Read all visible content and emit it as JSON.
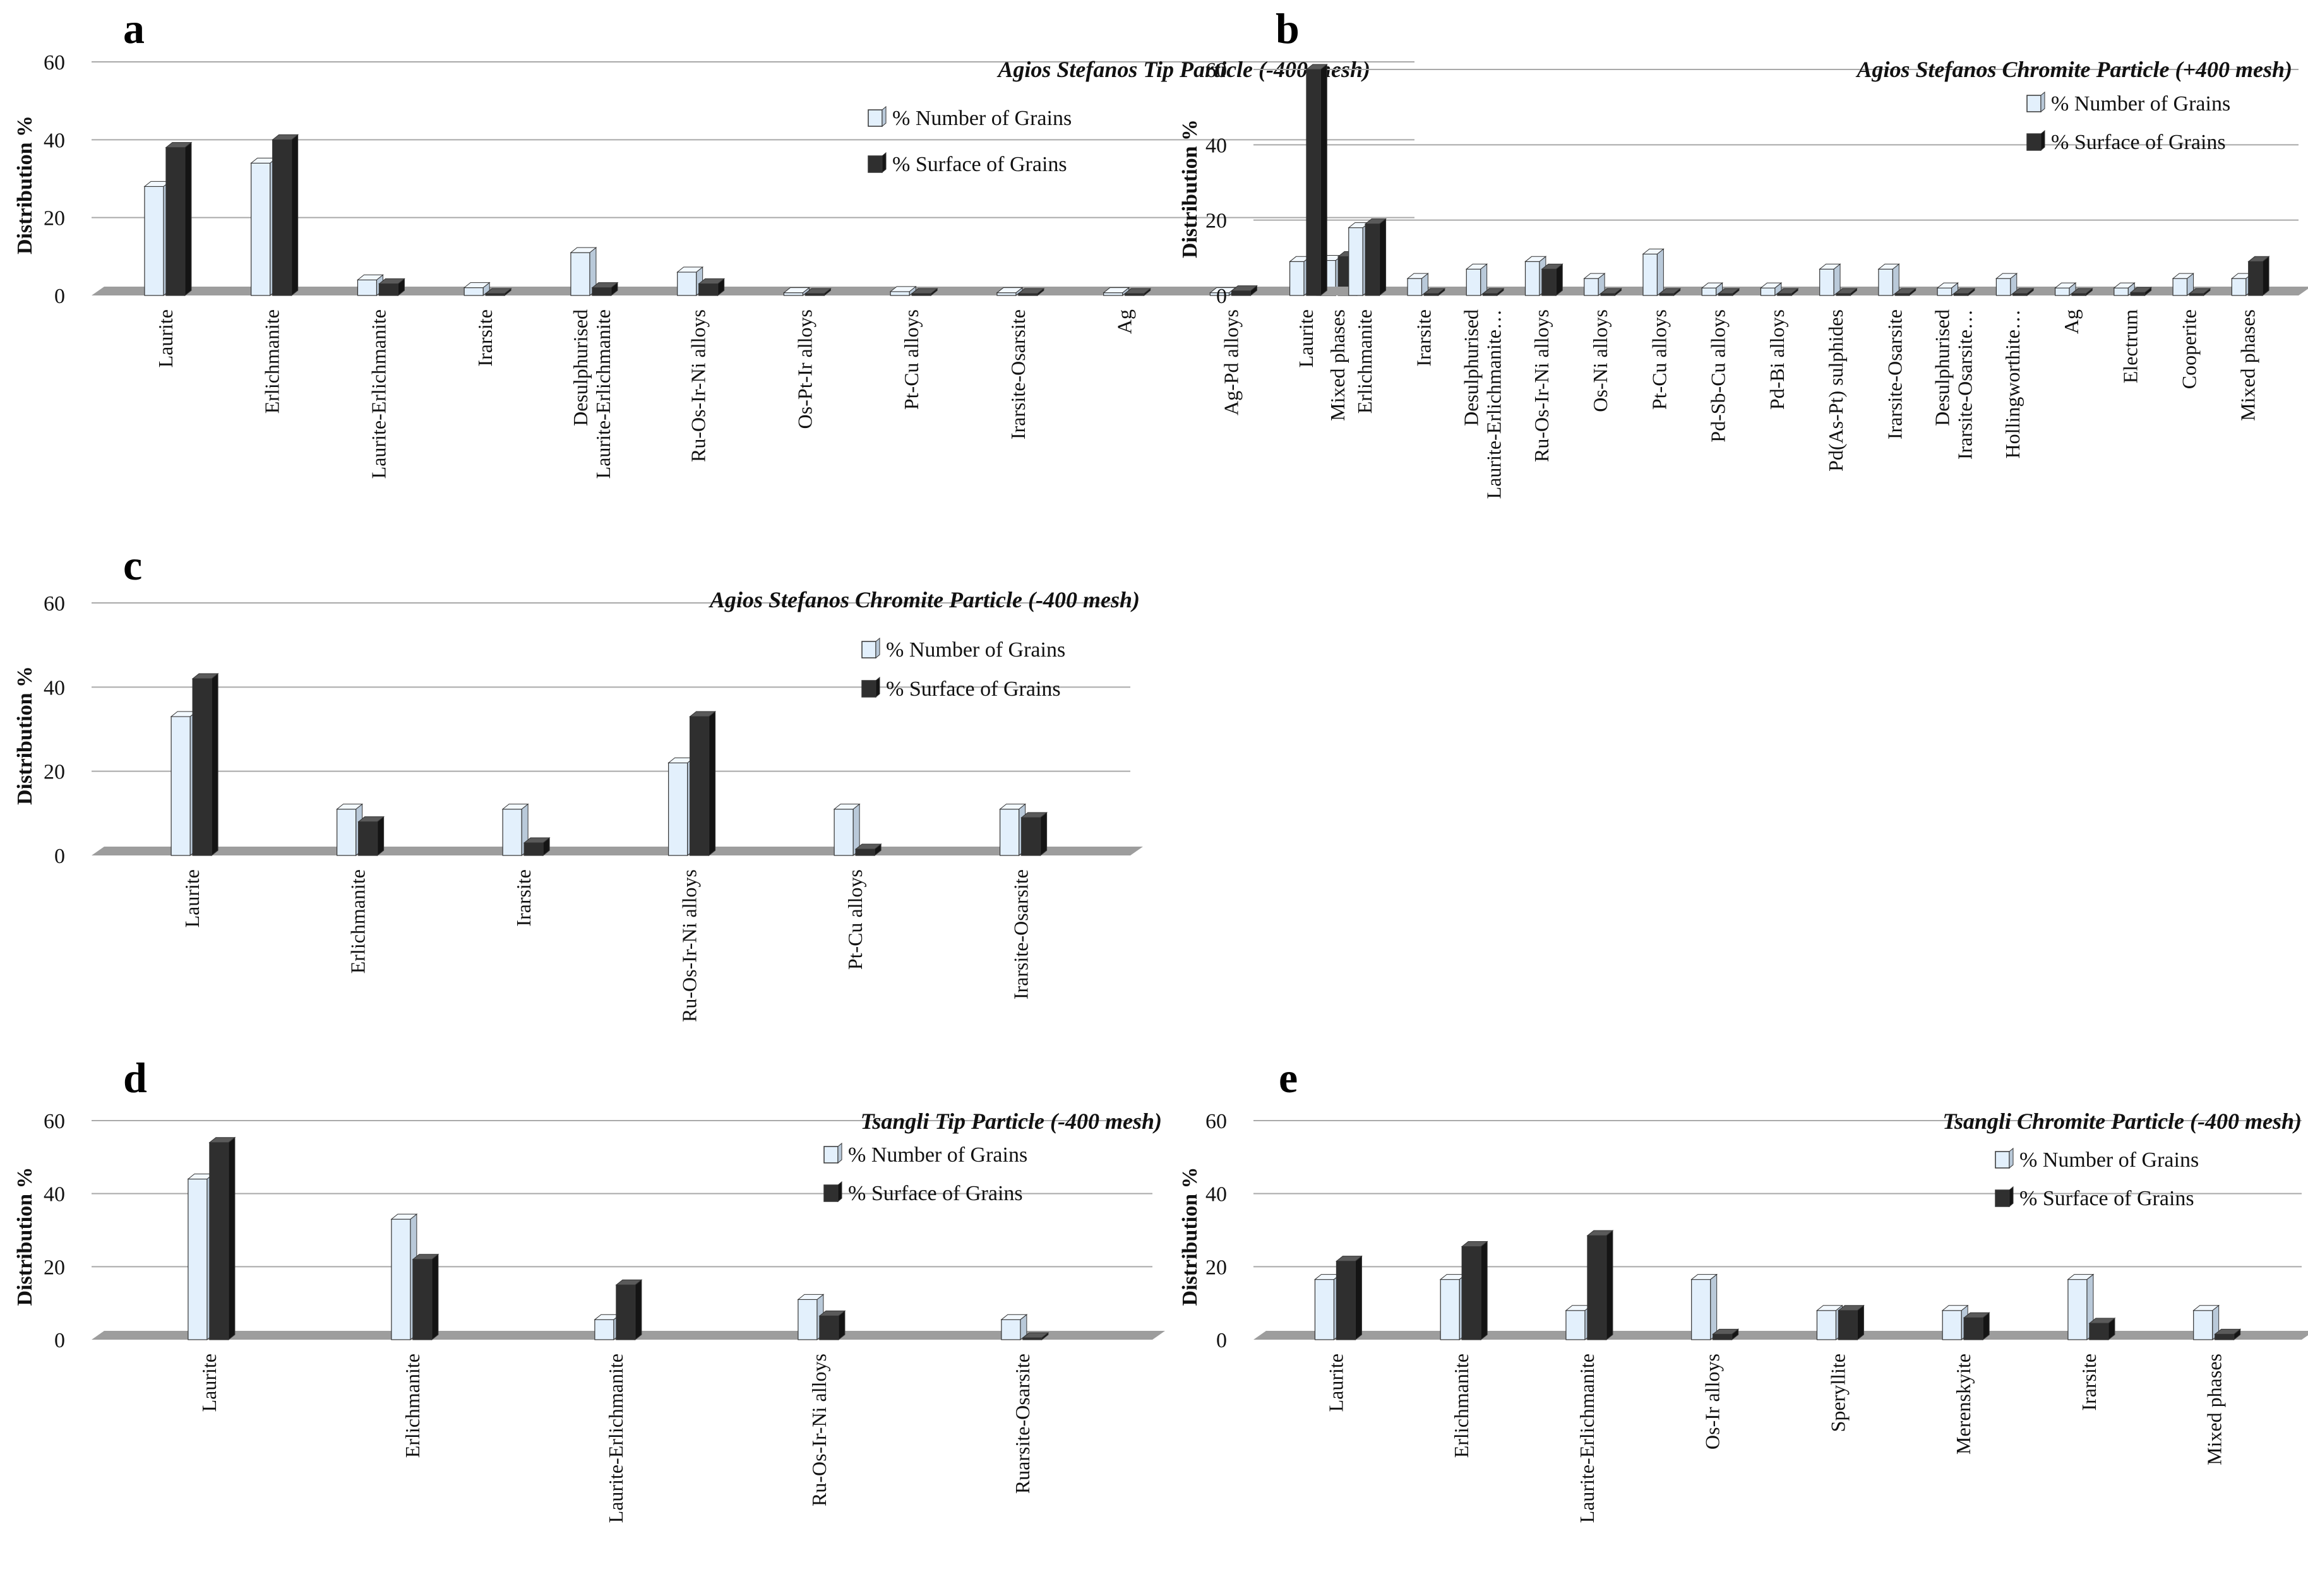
{
  "colors": {
    "number_front": "#e3f0fc",
    "number_side": "#b9c9d9",
    "number_top": "#f3f9ff",
    "surface_front": "#2f2f2f",
    "surface_side": "#141414",
    "surface_top": "#5a5a5a",
    "floor": "#9d9d9d",
    "gridline": "#a9a9a9"
  },
  "chart_data": [
    {
      "type": "bar",
      "panel": "a",
      "title": "Agios Stefanos Tip Particle (-400 mesh)",
      "ylabel": "Distribution %",
      "xlabel": "",
      "ylim": [
        0,
        60
      ],
      "yticks": [
        "0",
        "20",
        "40",
        "60"
      ],
      "legend": [
        "% Number of Grains",
        "% Surface of Grains"
      ],
      "categories": [
        [
          "Laurite"
        ],
        [
          "Erlichmanite"
        ],
        [
          "Laurite-Erlichmanite"
        ],
        [
          "Irarsite"
        ],
        [
          "Desulphurised",
          "Laurite-Erlichmanite"
        ],
        [
          "Ru-Os-Ir-Ni alloys"
        ],
        [
          "Os-Pt-Ir alloys"
        ],
        [
          "Pt-Cu alloys"
        ],
        [
          "Irarsite-Osarsite"
        ],
        [
          "Ag"
        ],
        [
          "Ag-Pd alloys"
        ],
        [
          "Mixed phases"
        ]
      ],
      "series": [
        {
          "name": "% Number of Grains",
          "values": [
            28,
            34,
            4,
            2,
            11,
            6,
            0.7,
            1,
            0.7,
            0.7,
            0.7,
            9
          ]
        },
        {
          "name": "% Surface of Grains",
          "values": [
            38,
            40,
            3,
            0.4,
            2,
            3,
            0.2,
            0.3,
            0.2,
            0.2,
            1.2,
            10
          ]
        }
      ]
    },
    {
      "type": "bar",
      "panel": "b",
      "title": "Agios Stefanos Chromite Particle (+400 mesh)",
      "ylabel": "Distribution %",
      "xlabel": "",
      "ylim": [
        0,
        60
      ],
      "yticks": [
        "0",
        "20",
        "40",
        "60"
      ],
      "legend": [
        "% Number of Grains",
        "% Surface of Grains"
      ],
      "categories": [
        [
          "Laurite"
        ],
        [
          "Erlichmanite"
        ],
        [
          "Irarsite"
        ],
        [
          "Desulphurised",
          "Laurite-Erlichmanite…"
        ],
        [
          "Ru-Os-Ir-Ni alloys"
        ],
        [
          "Os-Ni alloys"
        ],
        [
          "Pt-Cu alloys"
        ],
        [
          "Pd-Sb-Cu alloys"
        ],
        [
          "Pd-Bi alloys"
        ],
        [
          "Pd(As-Pt) sulphides"
        ],
        [
          "Irarsite-Osarsite"
        ],
        [
          "Desulphurised",
          "Irarsite-Osarsite…"
        ],
        [
          "Hollingworthite…"
        ],
        [
          "Ag"
        ],
        [
          "Electrum"
        ],
        [
          "Cooperite"
        ],
        [
          "Mixed phases"
        ]
      ],
      "series": [
        {
          "name": "% Number of Grains",
          "values": [
            9,
            18,
            4.5,
            7,
            9,
            4.5,
            11,
            2,
            2,
            7,
            7,
            2,
            4.5,
            2,
            2,
            4.5,
            4.5
          ]
        },
        {
          "name": "% Surface of Grains",
          "values": [
            60,
            19,
            0.3,
            0.3,
            7,
            0.3,
            0.3,
            0.2,
            0.2,
            0.2,
            0.2,
            0.5,
            0.3,
            0.5,
            0.8,
            0.2,
            9
          ]
        }
      ]
    },
    {
      "type": "bar",
      "panel": "c",
      "title": "Agios Stefanos Chromite Particle (-400 mesh)",
      "ylabel": "Distribution %",
      "xlabel": "",
      "ylim": [
        0,
        60
      ],
      "yticks": [
        "0",
        "20",
        "40",
        "60"
      ],
      "legend": [
        "% Number of Grains",
        "% Surface of Grains"
      ],
      "categories": [
        [
          "Laurite"
        ],
        [
          "Erlichmanite"
        ],
        [
          "Irarsite"
        ],
        [
          "Ru-Os-Ir-Ni alloys"
        ],
        [
          "Pt-Cu alloys"
        ],
        [
          "Irarsite-Osarsite"
        ]
      ],
      "series": [
        {
          "name": "% Number of Grains",
          "values": [
            33,
            11,
            11,
            22,
            11,
            11
          ]
        },
        {
          "name": "% Surface of Grains",
          "values": [
            42,
            8,
            3,
            33,
            1.5,
            9
          ]
        }
      ]
    },
    {
      "type": "bar",
      "panel": "d",
      "title": "Tsangli Tip Particle (-400 mesh)",
      "ylabel": "Distribution %",
      "xlabel": "",
      "ylim": [
        0,
        60
      ],
      "yticks": [
        "0",
        "20",
        "40",
        "60"
      ],
      "legend": [
        "% Number of Grains",
        "% Surface of Grains"
      ],
      "categories": [
        [
          "Laurite"
        ],
        [
          "Erlichmanite"
        ],
        [
          "Laurite-Erlichmanite"
        ],
        [
          "Ru-Os-Ir-Ni alloys"
        ],
        [
          "Ruarsite-Osarsite"
        ]
      ],
      "series": [
        {
          "name": "% Number of Grains",
          "values": [
            44,
            33,
            5.5,
            11,
            5.5
          ]
        },
        {
          "name": "% Surface of Grains",
          "values": [
            54,
            22,
            15,
            6.5,
            0.3
          ]
        }
      ]
    },
    {
      "type": "bar",
      "panel": "e",
      "title": "Tsangli Chromite Particle (-400 mesh)",
      "ylabel": "Distribution %",
      "xlabel": "",
      "ylim": [
        0,
        60
      ],
      "yticks": [
        "0",
        "20",
        "40",
        "60"
      ],
      "legend": [
        "% Number of Grains",
        "% Surface of Grains"
      ],
      "categories": [
        [
          "Laurite"
        ],
        [
          "Erlichmanite"
        ],
        [
          "Laurite-Erlichmanite"
        ],
        [
          "Os-Ir alloys"
        ],
        [
          "Speryllite"
        ],
        [
          "Merenskyite"
        ],
        [
          "Irarsite"
        ],
        [
          "Mixed phases"
        ]
      ],
      "series": [
        {
          "name": "% Number of Grains",
          "values": [
            16.5,
            16.5,
            8,
            16.5,
            8,
            8,
            16.5,
            8
          ]
        },
        {
          "name": "% Surface of Grains",
          "values": [
            21.5,
            25.5,
            28.5,
            1.5,
            8,
            6,
            4.5,
            1.5
          ]
        }
      ]
    }
  ]
}
